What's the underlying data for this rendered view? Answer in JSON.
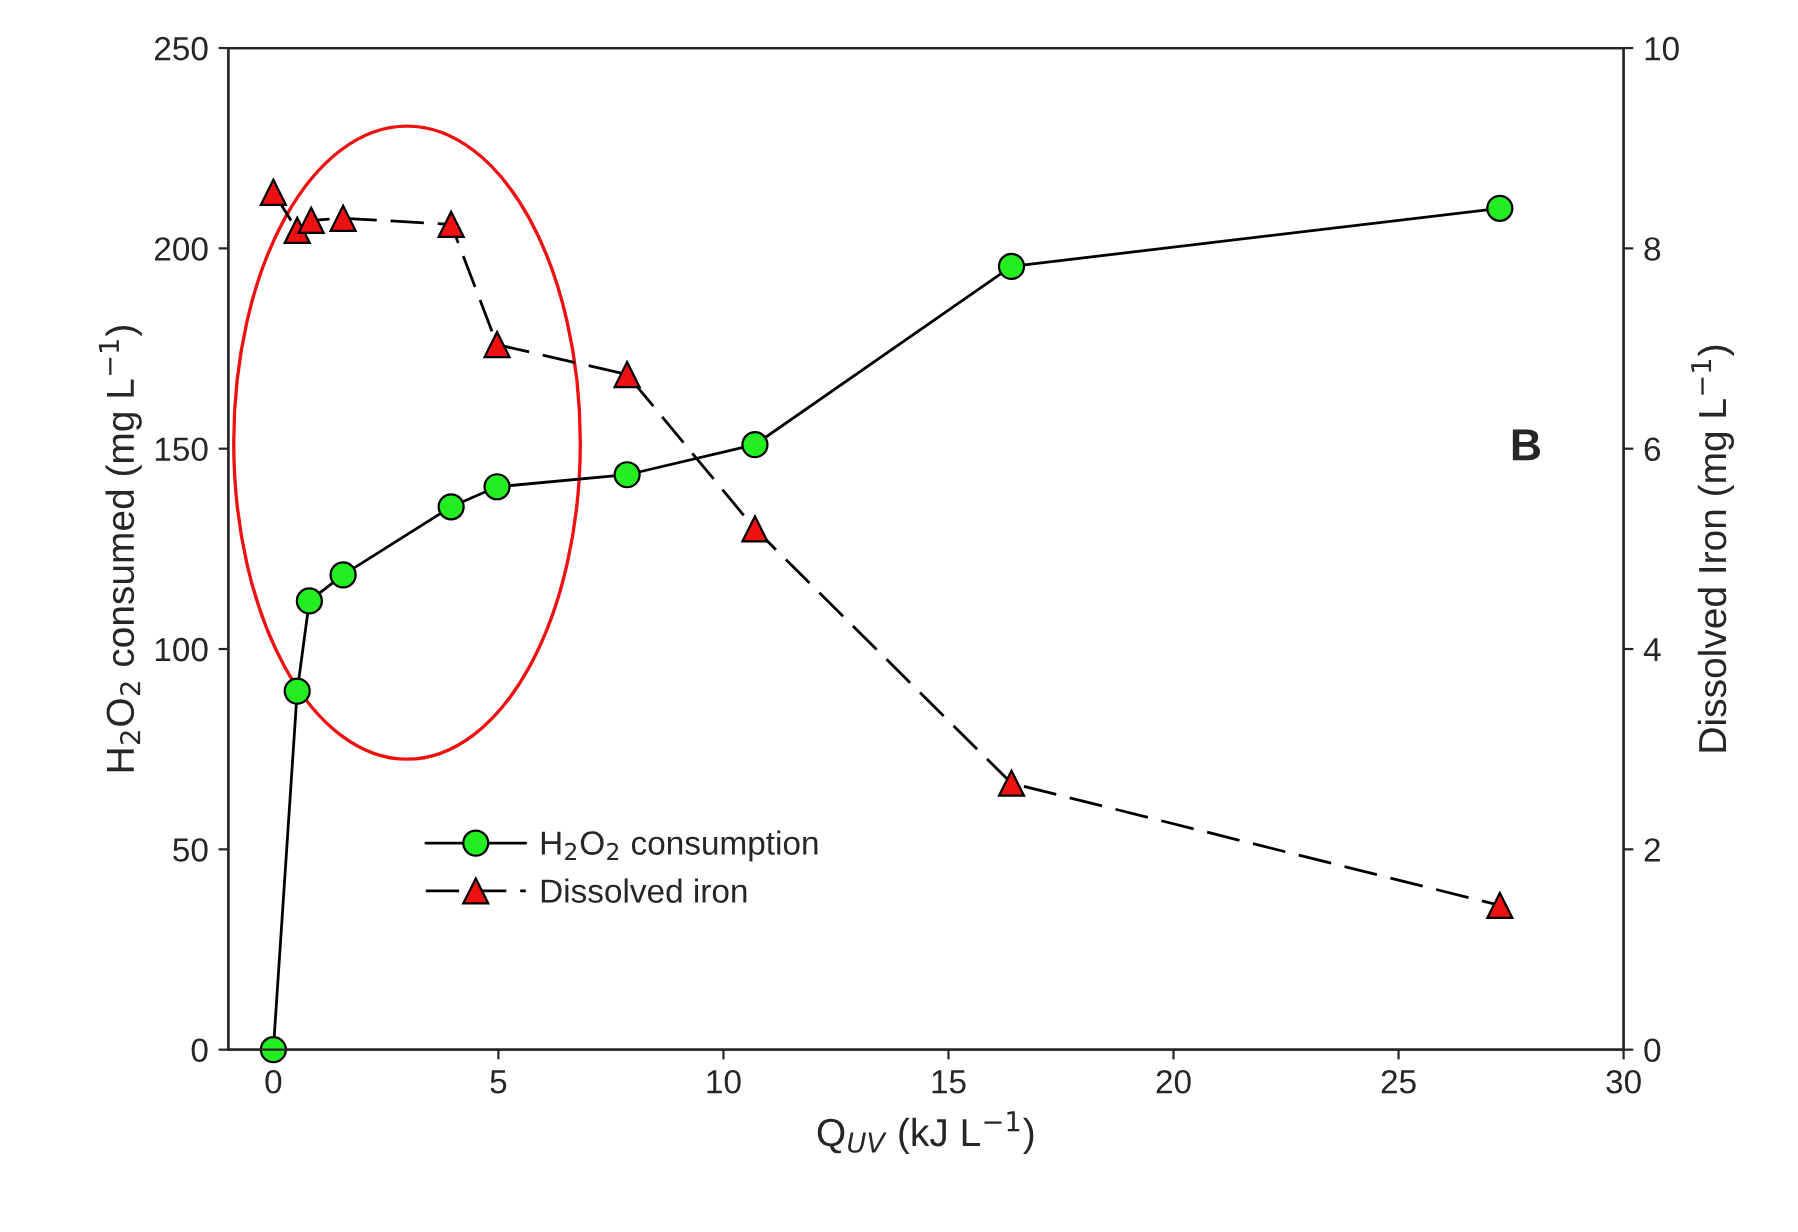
{
  "chart_data": {
    "type": "line",
    "xlabel": "Q$_{UV}$ (kJ L$^{−1}$)",
    "ylabel": "H$_{2}$O$_{2}$ consumed (mg L$^{−1}$)",
    "y2label": "Dissolved Iron (mg L$^{−1}$)",
    "series": [
      {
        "name": "H$_{2}$O$_{2}$ consumption",
        "color": "#22ee22",
        "marker": "circle",
        "line_style": "solid",
        "x": [
          0,
          0.53,
          0.8,
          1.55,
          3.95,
          4.97,
          7.86,
          10.7,
          16.4,
          27.25
        ],
        "values": [
          0,
          89.5,
          112,
          118.5,
          135.5,
          140.5,
          143.5,
          151,
          195.5,
          210
        ]
      },
      {
        "name": "Dissolved iron",
        "color": "#ee1111",
        "marker": "triangle",
        "line_style": "dashed",
        "axis": "y2",
        "x": [
          0,
          0.53,
          0.84,
          1.55,
          3.95,
          4.97,
          7.86,
          10.7,
          16.4,
          27.25
        ],
        "values": [
          8.56,
          8.18,
          8.28,
          8.3,
          8.24,
          7.04,
          6.74,
          5.2,
          2.66,
          1.44
        ]
      }
    ],
    "xlim": [
      -1,
      30
    ],
    "xticks": [
      0,
      5,
      10,
      15,
      20,
      25,
      30
    ],
    "ylim": [
      0,
      250
    ],
    "yticks": [
      0,
      50,
      100,
      150,
      200,
      250
    ],
    "y2lim": [
      0,
      10
    ],
    "y2ticks": [
      0,
      2,
      4,
      6,
      8,
      10
    ],
    "annotations": [
      "B"
    ],
    "legend": "lower left",
    "grid": false
  }
}
